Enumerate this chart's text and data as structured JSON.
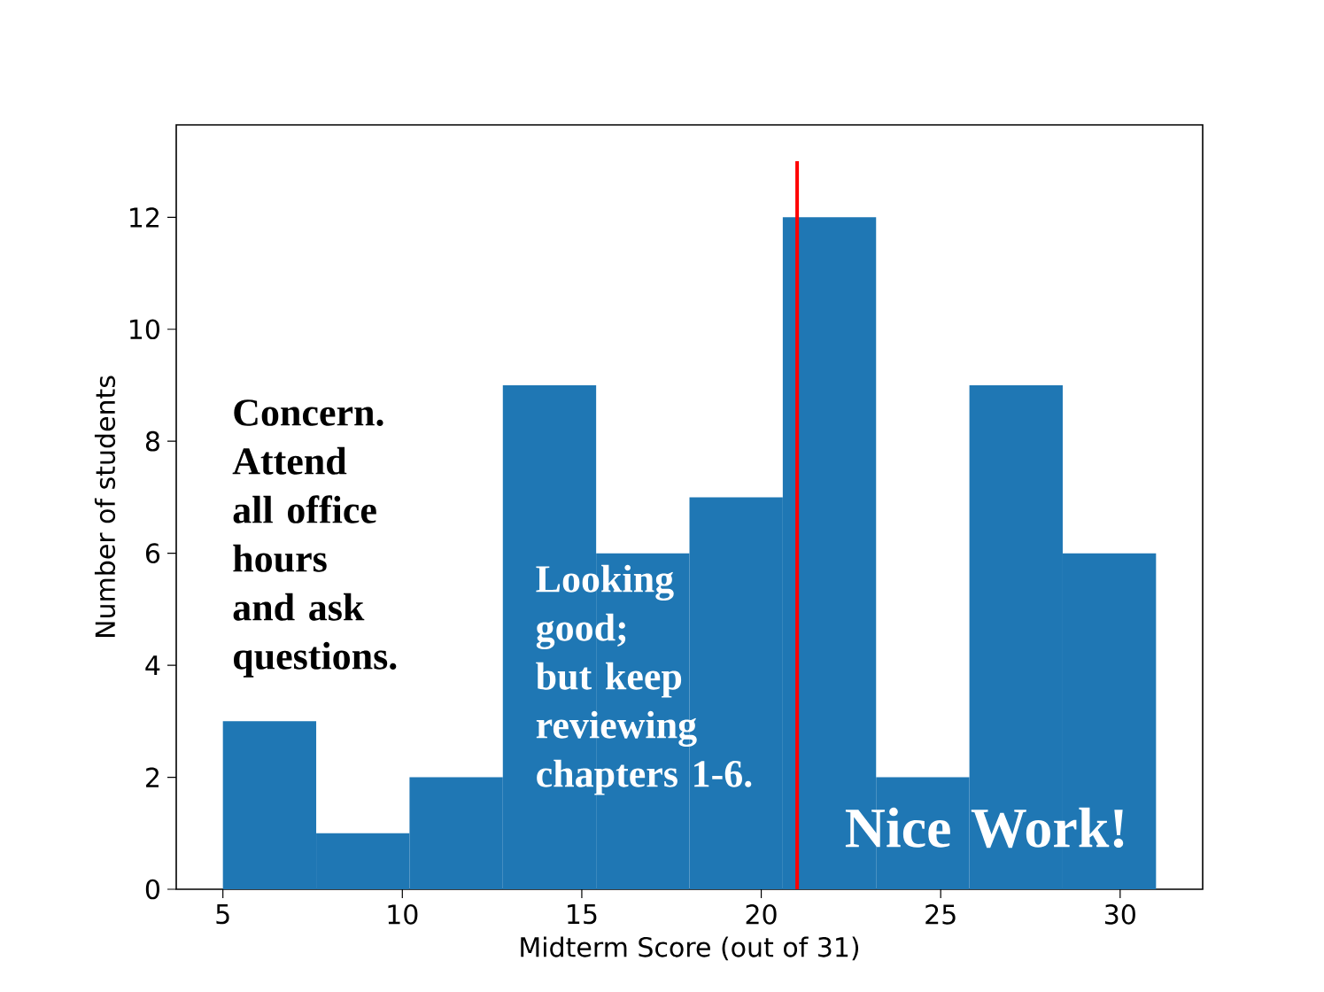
{
  "chart_data": {
    "type": "histogram",
    "xlabel": "Midterm Score (out of 31)",
    "ylabel": "Number of students",
    "bins": [
      5,
      7.6,
      10.2,
      12.8,
      15.4,
      18,
      20.6,
      23.2,
      25.8,
      28.4,
      31
    ],
    "values": [
      3,
      1,
      2,
      9,
      6,
      7,
      12,
      2,
      9,
      6
    ],
    "color": "#1f77b4",
    "series": [
      {
        "type": "line",
        "color": "#ff0000",
        "x": [
          21,
          21
        ],
        "values": [
          0,
          13
        ]
      }
    ],
    "xlim": [
      3.7,
      32.3
    ],
    "ylim": [
      0,
      13.65
    ],
    "xticks": [
      5,
      10,
      15,
      20,
      25,
      30
    ],
    "yticks": [
      0,
      2,
      4,
      6,
      8,
      10,
      12
    ],
    "annotations": [
      "Concern. Attend all office hours and ask questions.",
      "Looking good; but keep reviewing chapters 1-6.",
      "Nice Work!"
    ]
  }
}
